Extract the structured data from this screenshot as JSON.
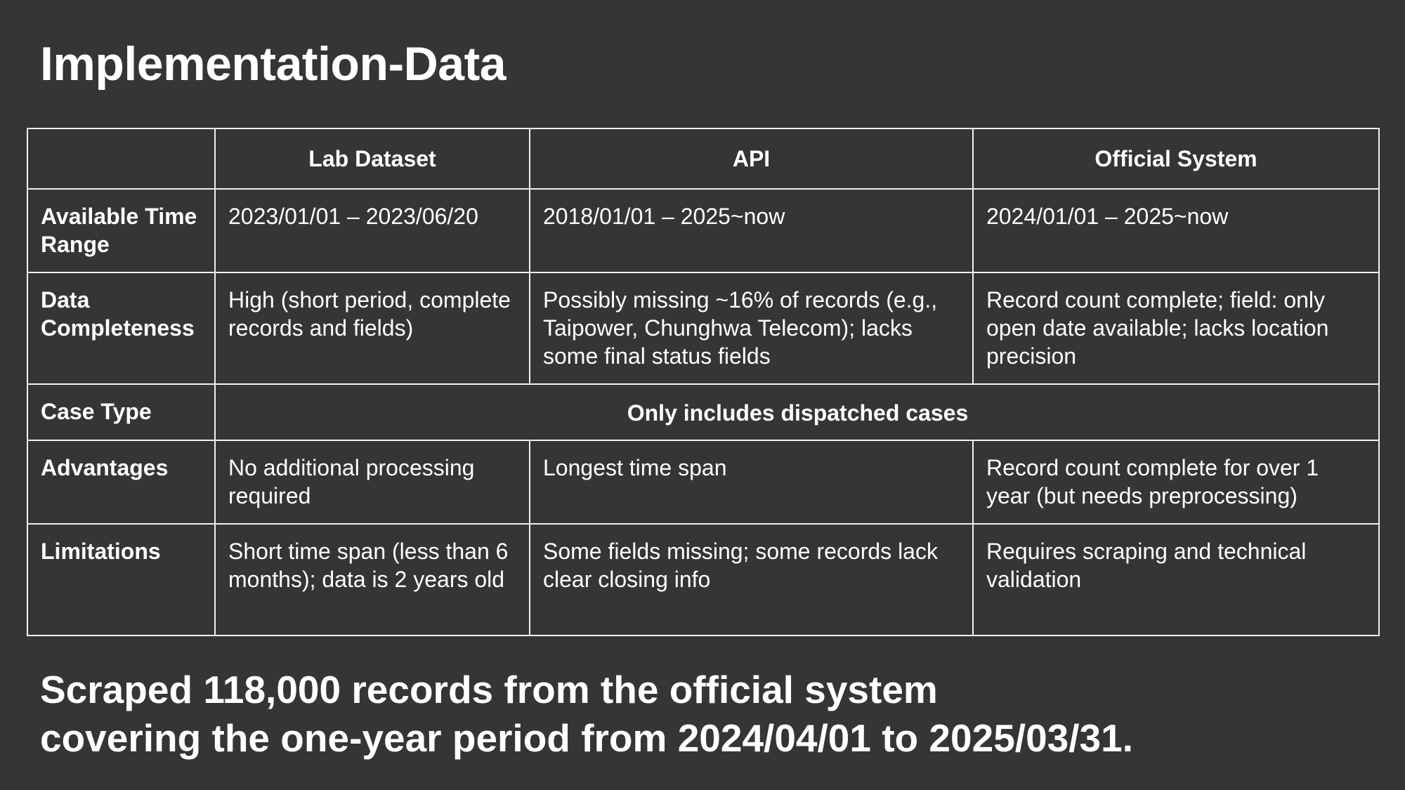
{
  "title": "Implementation-Data",
  "table": {
    "headers": [
      "",
      "Lab Dataset",
      "API",
      "Official System"
    ],
    "rows": {
      "time_range": {
        "label": "Available Time Range",
        "lab": "2023/01/01 – 2023/06/20",
        "api": "2018/01/01 – 2025~now",
        "official": "2024/01/01 – 2025~now"
      },
      "completeness": {
        "label": "Data Completeness",
        "lab": "High (short period, complete records and fields)",
        "api": "Possibly missing ~16% of records (e.g., Taipower, Chunghwa Telecom); lacks some final status fields",
        "official": "Record count complete; field: only open date available; lacks location precision"
      },
      "case_type": {
        "label": "Case Type",
        "merged": "Only includes dispatched cases"
      },
      "advantages": {
        "label": "Advantages",
        "lab": "No additional processing required",
        "api": "Longest time span",
        "official": "Record count complete for over 1 year (but needs preprocessing)"
      },
      "limitations": {
        "label": "Limitations",
        "lab": "Short time span (less than 6 months); data is 2 years old",
        "api": "Some fields missing; some records lack clear closing info",
        "official": "Requires scraping and technical validation"
      }
    }
  },
  "summary": {
    "line1": "Scraped 118,000 records from the official system",
    "line2": "covering the one-year period from 2024/04/01 to 2025/03/31."
  }
}
